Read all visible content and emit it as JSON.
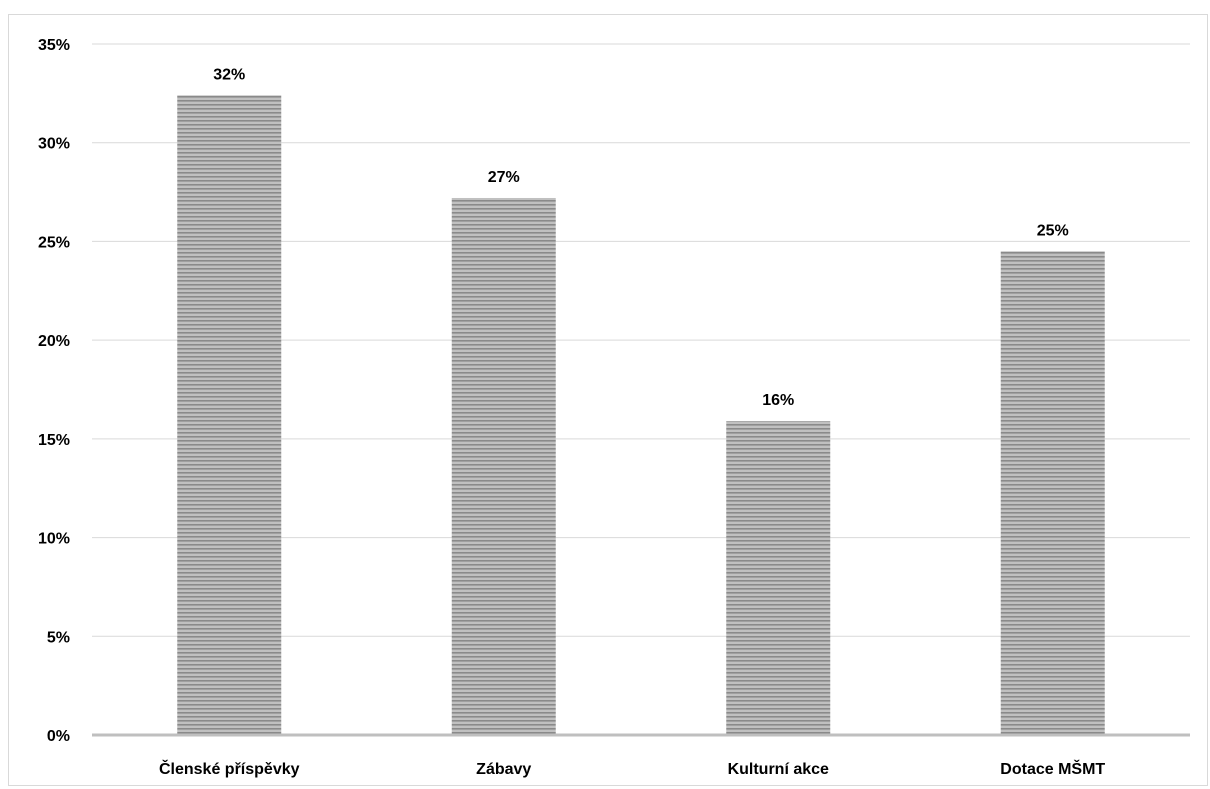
{
  "chart_data": {
    "type": "bar",
    "categories": [
      "Členské příspěvky",
      "Zábavy",
      "Kulturní akce",
      "Dotace MŠMT"
    ],
    "values": [
      32.4,
      27.2,
      15.9,
      24.5
    ],
    "data_labels": [
      "32%",
      "27%",
      "16%",
      "25%"
    ],
    "y_ticks": [
      "0%",
      "5%",
      "10%",
      "15%",
      "20%",
      "25%",
      "30%",
      "35%"
    ],
    "ylim": [
      0,
      35
    ],
    "y_step": 5,
    "title": "",
    "xlabel": "",
    "ylabel": "",
    "grid": true,
    "legend": "none",
    "colors": {
      "bar_fill": "#c0c0c0",
      "bar_stripe": "#8a8a8a",
      "grid": "#d9d9d9",
      "axis": "#bfbfbf"
    }
  }
}
